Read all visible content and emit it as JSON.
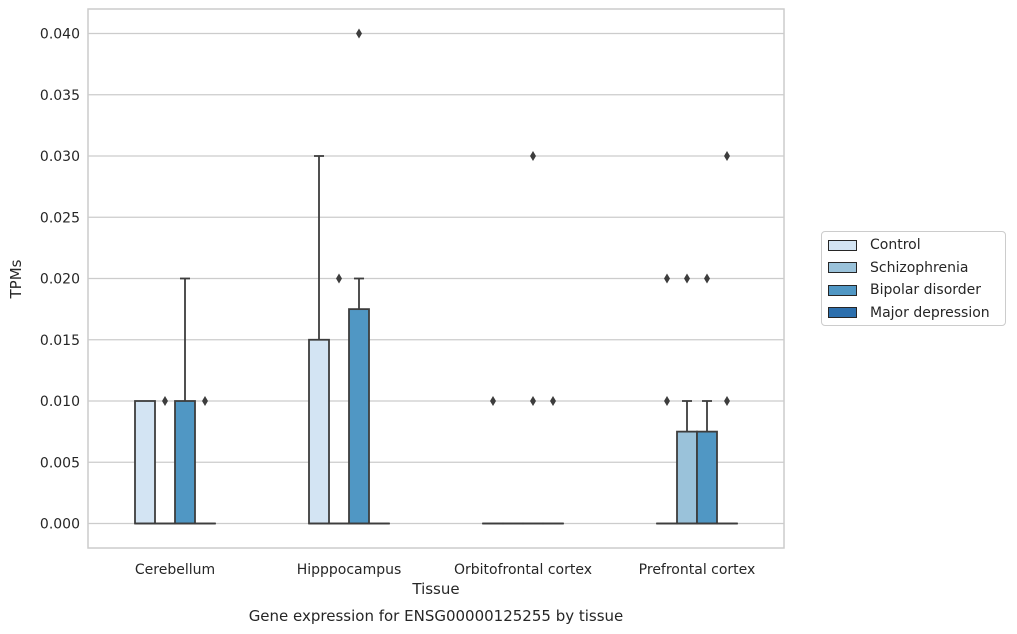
{
  "chart_data": {
    "type": "box",
    "title": "Gene expression for ENSG00000125255 by tissue",
    "xlabel": "Tissue",
    "ylabel": "TPMs",
    "ylim": [
      -0.002,
      0.042
    ],
    "yticks": [
      "0.000",
      "0.005",
      "0.010",
      "0.015",
      "0.020",
      "0.025",
      "0.030",
      "0.035",
      "0.040"
    ],
    "grid": "horizontal",
    "legend_position": "right",
    "categories": [
      "Cerebellum",
      "Hipppocampus",
      "Orbitofrontal cortex",
      "Prefrontal cortex"
    ],
    "series": [
      {
        "name": "Control",
        "color": "#d3e4f3",
        "boxes": [
          {
            "q1": 0.0,
            "median": 0.0,
            "q3": 0.01,
            "whisker_low": 0.0,
            "whisker_high": 0.01,
            "outliers": []
          },
          {
            "q1": 0.0,
            "median": 0.0,
            "q3": 0.015,
            "whisker_low": 0.0,
            "whisker_high": 0.03,
            "outliers": []
          },
          {
            "q1": 0.0,
            "median": 0.0,
            "q3": 0.0,
            "whisker_low": 0.0,
            "whisker_high": 0.0,
            "outliers": [
              0.01
            ]
          },
          {
            "q1": 0.0,
            "median": 0.0,
            "q3": 0.0,
            "whisker_low": 0.0,
            "whisker_high": 0.0,
            "outliers": [
              0.01,
              0.02
            ]
          }
        ]
      },
      {
        "name": "Schizophrenia",
        "color": "#9ac2da",
        "boxes": [
          {
            "q1": 0.0,
            "median": 0.0,
            "q3": 0.0,
            "whisker_low": 0.0,
            "whisker_high": 0.0,
            "outliers": [
              0.01
            ]
          },
          {
            "q1": 0.0,
            "median": 0.0,
            "q3": 0.0,
            "whisker_low": 0.0,
            "whisker_high": 0.0,
            "outliers": [
              0.02
            ]
          },
          {
            "q1": 0.0,
            "median": 0.0,
            "q3": 0.0,
            "whisker_low": 0.0,
            "whisker_high": 0.0,
            "outliers": []
          },
          {
            "q1": 0.0,
            "median": 0.0,
            "q3": 0.0075,
            "whisker_low": 0.0,
            "whisker_high": 0.01,
            "outliers": [
              0.02
            ]
          }
        ]
      },
      {
        "name": "Bipolar disorder",
        "color": "#5097c4",
        "boxes": [
          {
            "q1": 0.0,
            "median": 0.0,
            "q3": 0.01,
            "whisker_low": 0.0,
            "whisker_high": 0.02,
            "outliers": []
          },
          {
            "q1": 0.0,
            "median": 0.0,
            "q3": 0.0175,
            "whisker_low": 0.0,
            "whisker_high": 0.02,
            "outliers": [
              0.04
            ]
          },
          {
            "q1": 0.0,
            "median": 0.0,
            "q3": 0.0,
            "whisker_low": 0.0,
            "whisker_high": 0.0,
            "outliers": [
              0.01,
              0.03
            ]
          },
          {
            "q1": 0.0,
            "median": 0.0,
            "q3": 0.0075,
            "whisker_low": 0.0,
            "whisker_high": 0.01,
            "outliers": [
              0.02
            ]
          }
        ]
      },
      {
        "name": "Major depression",
        "color": "#2c6fad",
        "boxes": [
          {
            "q1": 0.0,
            "median": 0.0,
            "q3": 0.0,
            "whisker_low": 0.0,
            "whisker_high": 0.0,
            "outliers": [
              0.01
            ]
          },
          {
            "q1": 0.0,
            "median": 0.0,
            "q3": 0.0,
            "whisker_low": 0.0,
            "whisker_high": 0.0,
            "outliers": []
          },
          {
            "q1": 0.0,
            "median": 0.0,
            "q3": 0.0,
            "whisker_low": 0.0,
            "whisker_high": 0.0,
            "outliers": [
              0.01
            ]
          },
          {
            "q1": 0.0,
            "median": 0.0,
            "q3": 0.0,
            "whisker_low": 0.0,
            "whisker_high": 0.0,
            "outliers": [
              0.01,
              0.03
            ]
          }
        ]
      }
    ]
  }
}
